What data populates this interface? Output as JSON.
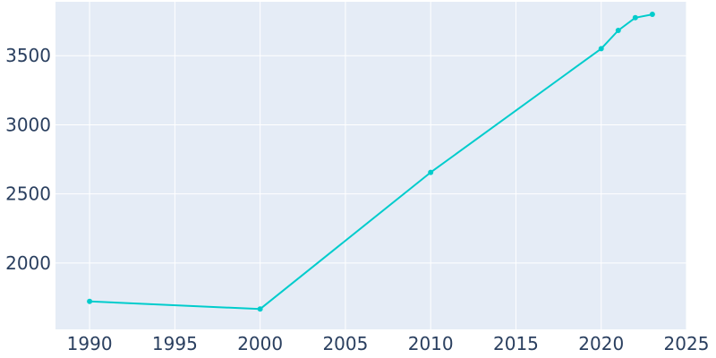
{
  "chart_data": {
    "type": "line",
    "title": "",
    "xlabel": "",
    "ylabel": "",
    "xlim": [
      1988,
      2025
    ],
    "ylim": [
      1520,
      3890
    ],
    "x_ticks": [
      1990,
      1995,
      2000,
      2005,
      2010,
      2015,
      2020,
      2025
    ],
    "y_ticks": [
      2000,
      2500,
      3000,
      3500
    ],
    "grid": true,
    "legend": "none",
    "colors": {
      "plot_background": "#e5ecf6",
      "grid": "#ffffff",
      "line": "#00cccc",
      "tick_text": "#2a3f5f"
    },
    "series": [
      {
        "x": [
          1990,
          2000,
          2010,
          2020,
          2021,
          2022,
          2023
        ],
        "y": [
          1722,
          1667,
          2656,
          3551,
          3683,
          3775,
          3799
        ]
      }
    ]
  }
}
